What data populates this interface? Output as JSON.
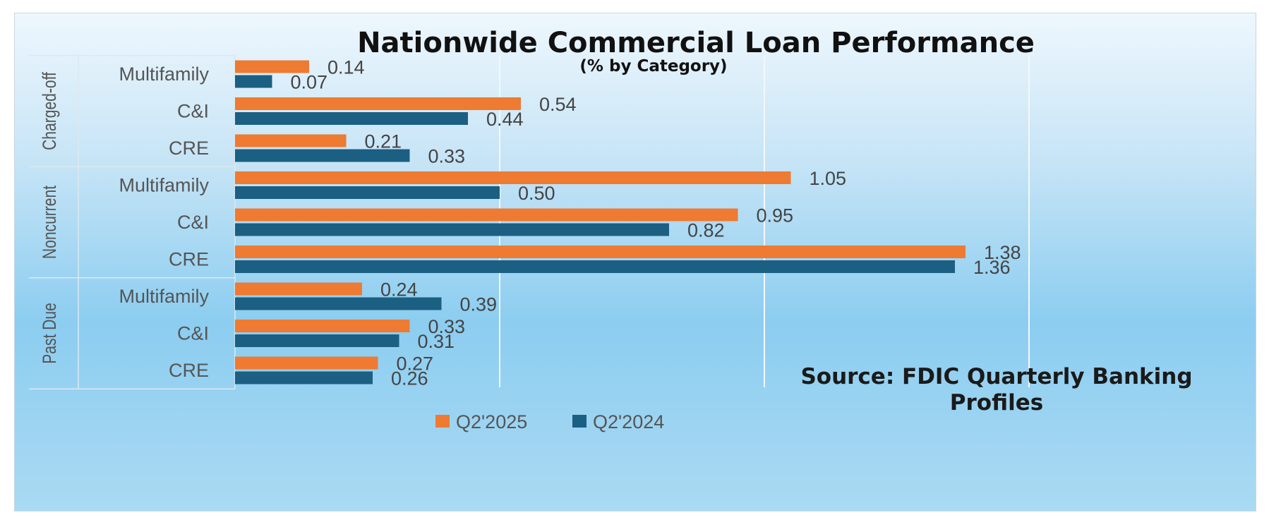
{
  "chart_data": {
    "type": "bar",
    "orientation": "horizontal",
    "title": "Nationwide Commercial Loan Performance",
    "subtitle": "(% by Category)",
    "groups": [
      {
        "name": "Charged-off",
        "categories": [
          "Multifamily",
          "C&I",
          "CRE"
        ]
      },
      {
        "name": "Noncurrent",
        "categories": [
          "Multifamily",
          "C&I",
          "CRE"
        ]
      },
      {
        "name": "Past Due",
        "categories": [
          "Multifamily",
          "C&I",
          "CRE"
        ]
      }
    ],
    "series": [
      {
        "name": "Q2'2025",
        "color": "#ef7a31",
        "values": [
          0.14,
          0.54,
          0.21,
          1.05,
          0.95,
          1.38,
          0.24,
          0.33,
          0.27
        ],
        "labels": [
          "0.14",
          "0.54",
          "0.21",
          "1.05",
          "0.95",
          "1.38",
          "0.24",
          "0.33",
          "0.27"
        ]
      },
      {
        "name": "Q2'2024",
        "color": "#1b5f83",
        "values": [
          0.07,
          0.44,
          0.33,
          0.5,
          0.82,
          1.36,
          0.39,
          0.31,
          0.26
        ],
        "labels": [
          "0.07",
          "0.44",
          "0.33",
          "0.50",
          "0.82",
          "1.36",
          "0.39",
          "0.31",
          "0.26"
        ]
      }
    ],
    "xlim": [
      0,
      1.5
    ],
    "gridlines": [
      0.5,
      1.0,
      1.5
    ],
    "grid": true,
    "legend": "bottom-center",
    "annotation": "Source: FDIC Quarterly Banking Profiles"
  }
}
